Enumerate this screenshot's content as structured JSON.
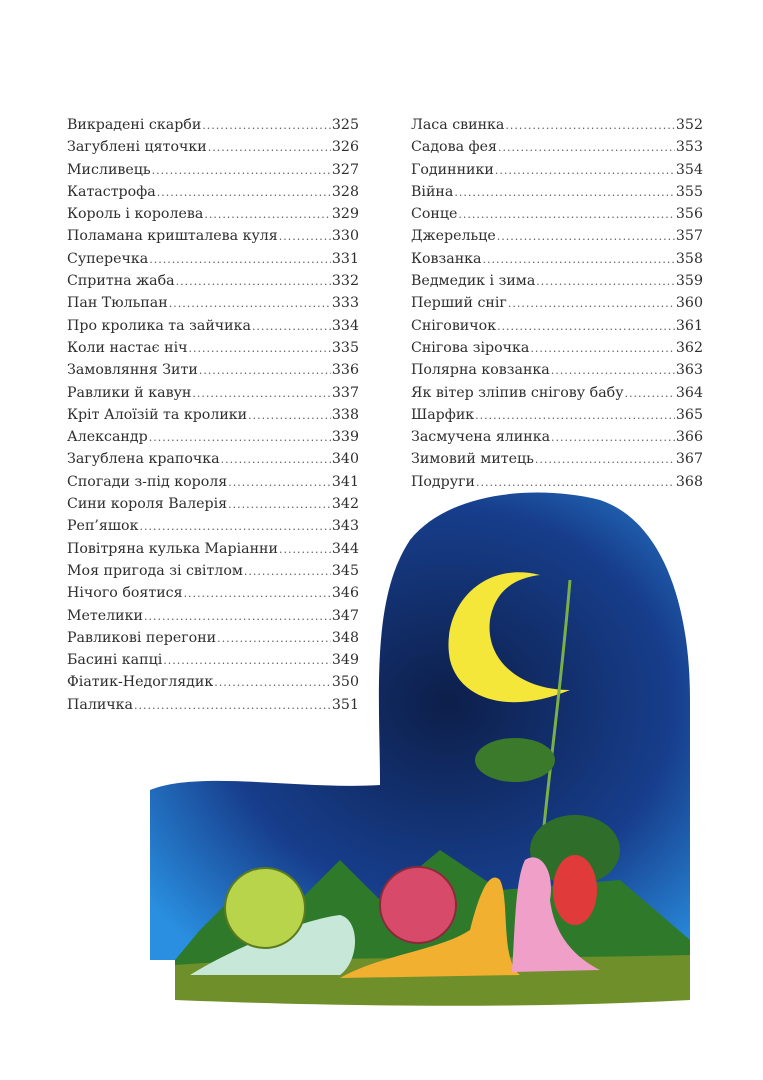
{
  "toc": {
    "left": [
      {
        "title": "Викрадені скарби",
        "page": "325"
      },
      {
        "title": "Загублені цяточки",
        "page": "326"
      },
      {
        "title": "Мисливець",
        "page": "327"
      },
      {
        "title": "Катастрофа",
        "page": "328"
      },
      {
        "title": "Король і королева",
        "page": "329"
      },
      {
        "title": "Поламана кришталева куля",
        "page": "330"
      },
      {
        "title": "Суперечка",
        "page": "331"
      },
      {
        "title": "Спритна жаба",
        "page": "332"
      },
      {
        "title": "Пан Тюльпан",
        "page": "333"
      },
      {
        "title": "Про кролика та зайчика",
        "page": "334"
      },
      {
        "title": "Коли настає ніч",
        "page": "335"
      },
      {
        "title": "Замовляння Зити",
        "page": "336"
      },
      {
        "title": "Равлики й кавун",
        "page": "337"
      },
      {
        "title": "Кріт Алоїзій та кролики",
        "page": "338"
      },
      {
        "title": "Александр",
        "page": "339"
      },
      {
        "title": "Загублена крапочка",
        "page": "340"
      },
      {
        "title": "Спогади з-під короля",
        "page": "341"
      },
      {
        "title": "Сини короля Валерія",
        "page": "342"
      },
      {
        "title": "Реп’яшок",
        "page": "343"
      },
      {
        "title": "Повітряна кулька Маріанни",
        "page": "344"
      },
      {
        "title": "Моя пригода зі світлом",
        "page": "345"
      },
      {
        "title": "Нічого боятися",
        "page": "346"
      },
      {
        "title": "Метелики",
        "page": "347"
      },
      {
        "title": "Равликові перегони",
        "page": "348"
      },
      {
        "title": "Басині капці",
        "page": "349"
      },
      {
        "title": "Фіатик-Недоглядик",
        "page": "350"
      },
      {
        "title": "Паличка",
        "page": "351"
      }
    ],
    "right": [
      {
        "title": "Ласа свинка",
        "page": "352"
      },
      {
        "title": "Садова фея",
        "page": "353"
      },
      {
        "title": "Годинники",
        "page": "354"
      },
      {
        "title": "Війна",
        "page": "355"
      },
      {
        "title": "Сонце",
        "page": "356"
      },
      {
        "title": "Джерельце",
        "page": "357"
      },
      {
        "title": "Ковзанка",
        "page": "358"
      },
      {
        "title": "Ведмедик і зима",
        "page": "359"
      },
      {
        "title": "Перший сніг",
        "page": "360"
      },
      {
        "title": "Сніговичок",
        "page": "361"
      },
      {
        "title": "Снігова зірочка",
        "page": "362"
      },
      {
        "title": "Полярна ковзанка",
        "page": "363"
      },
      {
        "title": "Як вітер зліпив снігову бабу",
        "page": "364"
      },
      {
        "title": "Шарфик",
        "page": "365"
      },
      {
        "title": "Засмучена ялинка",
        "page": "366"
      },
      {
        "title": "Зимовий митець",
        "page": "367"
      },
      {
        "title": "Подруги",
        "page": "368"
      }
    ]
  },
  "illustration": {
    "subject": "snails under crescent moon at night",
    "colors": {
      "sky": "#1a5fb4",
      "moon": "#f5e63a",
      "grass": "#3a8a2a",
      "ground": "#6a8a2a"
    }
  }
}
